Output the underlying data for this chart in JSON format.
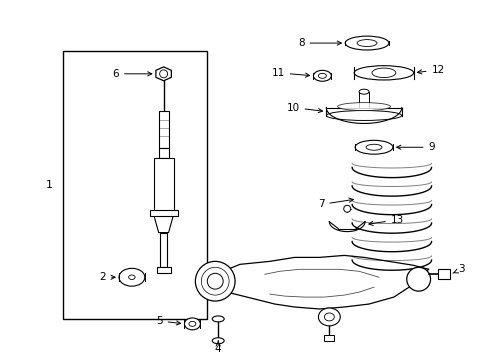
{
  "background_color": "#ffffff",
  "line_color": "#000000",
  "label_color": "#000000",
  "figure_width": 4.89,
  "figure_height": 3.6,
  "dpi": 100
}
